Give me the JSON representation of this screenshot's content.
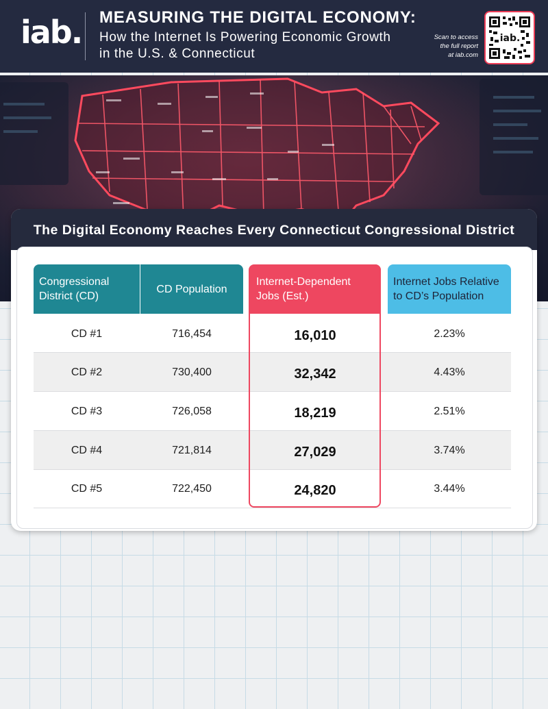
{
  "header": {
    "logo": "iab.",
    "title": "MEASURING THE DIGITAL ECONOMY:",
    "subtitle_line1": "How the Internet Is Powering Economic Growth",
    "subtitle_line2": "in the U.S. & Connecticut",
    "scan_line1": "Scan to access",
    "scan_line2": "the full report",
    "scan_line3": "at iab.com",
    "qr_label": "iab."
  },
  "card": {
    "title": "The Digital Economy Reaches Every Connecticut Congressional District"
  },
  "table": {
    "headers": [
      {
        "line1": "Congressional",
        "line2": "District (CD)"
      },
      {
        "line1": "CD Population",
        "line2": ""
      },
      {
        "line1": "Internet-Dependent",
        "line2": "Jobs (Est.)"
      },
      {
        "line1": "Internet Jobs Relative",
        "line2": "to CD’s Population"
      }
    ],
    "rows": [
      {
        "district": "CD #1",
        "population": "716,454",
        "jobs": "16,010",
        "relative": "2.23%"
      },
      {
        "district": "CD #2",
        "population": "730,400",
        "jobs": "32,342",
        "relative": "4.43%"
      },
      {
        "district": "CD #3",
        "population": "726,058",
        "jobs": "18,219",
        "relative": "2.51%"
      },
      {
        "district": "CD #4",
        "population": "721,814",
        "jobs": "27,029",
        "relative": "3.74%"
      },
      {
        "district": "CD #5",
        "population": "722,450",
        "jobs": "24,820",
        "relative": "3.44%"
      }
    ]
  },
  "colors": {
    "header_bg": "#242a40",
    "teal": "#1f8793",
    "red": "#ee4760",
    "blue": "#4dbde6"
  },
  "icons": {
    "qr": "qr-code-icon",
    "map": "us-map-illustration"
  }
}
